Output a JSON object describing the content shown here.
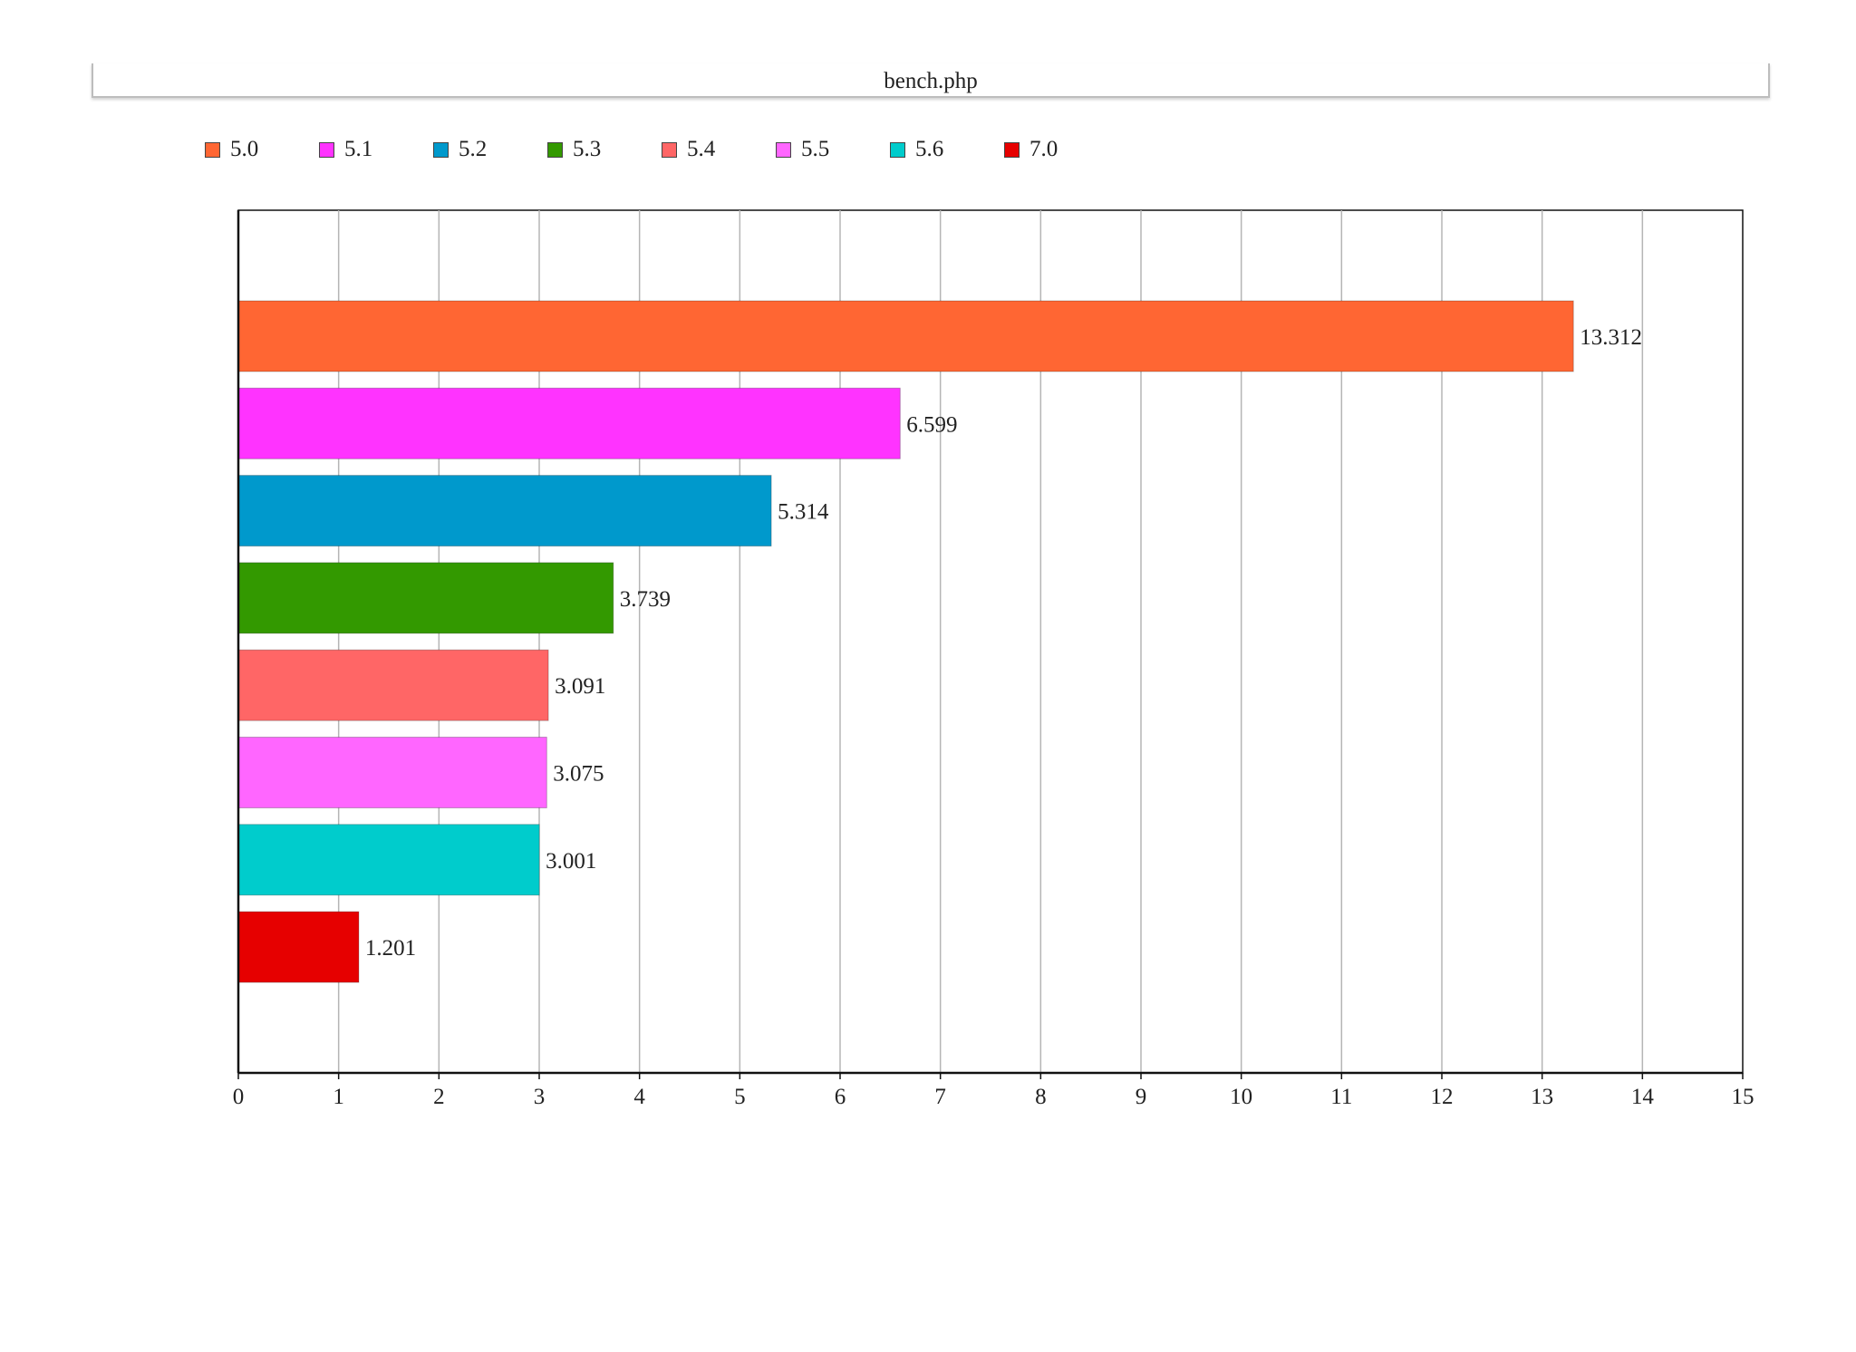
{
  "chart_data": {
    "type": "bar",
    "orientation": "horizontal",
    "title": "bench.php",
    "categories": [
      "5.0",
      "5.1",
      "5.2",
      "5.3",
      "5.4",
      "5.5",
      "5.6",
      "7.0"
    ],
    "values": [
      13.312,
      6.599,
      5.314,
      3.739,
      3.091,
      3.075,
      3.001,
      1.201
    ],
    "value_labels": [
      "13.312",
      "6.599",
      "5.314",
      "3.739",
      "3.091",
      "3.075",
      "3.001",
      "1.201"
    ],
    "colors": [
      "#ff6633",
      "#ff33ff",
      "#0099cc",
      "#339900",
      "#ff6666",
      "#ff66ff",
      "#00cccc",
      "#e60000"
    ],
    "xlim": [
      0,
      15
    ],
    "xticks": [
      "0",
      "1",
      "2",
      "3",
      "4",
      "5",
      "6",
      "7",
      "8",
      "9",
      "10",
      "11",
      "12",
      "13",
      "14",
      "15"
    ],
    "xlabel": "",
    "ylabel": "",
    "grid": "vertical",
    "legend_position": "top-left"
  }
}
